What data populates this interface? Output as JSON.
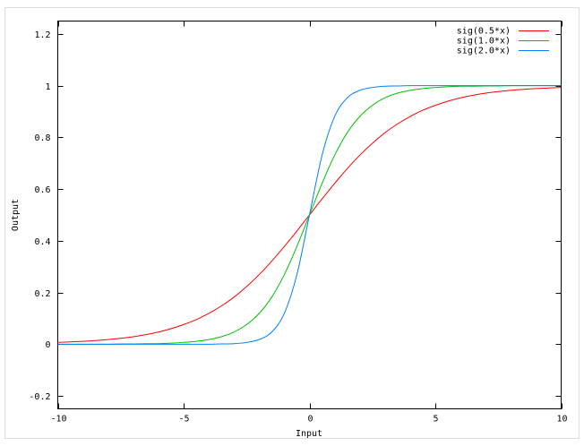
{
  "chart_data": {
    "type": "line",
    "title": "",
    "xlabel": "Input",
    "ylabel": "Output",
    "xlim": [
      -10,
      10
    ],
    "ylim": [
      -0.25,
      1.25
    ],
    "grid": false,
    "legend_position": "top-right",
    "xticks": [
      -10,
      -5,
      0,
      5,
      10
    ],
    "xtick_labels": [
      "-10",
      "-5",
      "0",
      "5",
      "10"
    ],
    "yticks": [
      -0.2,
      0,
      0.2,
      0.4,
      0.6,
      0.8,
      1,
      1.2
    ],
    "ytick_labels": [
      "-0.2",
      "0",
      "0.2",
      "0.4",
      "0.6",
      "0.8",
      "1",
      "1.2"
    ],
    "x": [
      -10,
      -9.5,
      -9,
      -8.5,
      -8,
      -7.5,
      -7,
      -6.5,
      -6,
      -5.5,
      -5,
      -4.5,
      -4,
      -3.5,
      -3,
      -2.5,
      -2,
      -1.5,
      -1,
      -0.5,
      0,
      0.5,
      1,
      1.5,
      2,
      2.5,
      3,
      3.5,
      4,
      4.5,
      5,
      5.5,
      6,
      6.5,
      7,
      7.5,
      8,
      8.5,
      9,
      9.5,
      10
    ],
    "series": [
      {
        "name": "sig(0.5*x)",
        "color": "#ff0000",
        "values": [
          0.007,
          0.009,
          0.011,
          0.014,
          0.018,
          0.023,
          0.029,
          0.037,
          0.047,
          0.06,
          0.076,
          0.095,
          0.119,
          0.148,
          0.182,
          0.223,
          0.269,
          0.321,
          0.378,
          0.438,
          0.5,
          0.562,
          0.622,
          0.679,
          0.731,
          0.777,
          0.818,
          0.852,
          0.881,
          0.905,
          0.924,
          0.94,
          0.953,
          0.963,
          0.971,
          0.977,
          0.982,
          0.986,
          0.989,
          0.991,
          0.993
        ]
      },
      {
        "name": "sig(1.0*x)",
        "color": "#00c000",
        "values": [
          0.0,
          0.0,
          0.0,
          0.0,
          0.0,
          0.001,
          0.001,
          0.002,
          0.002,
          0.004,
          0.007,
          0.011,
          0.018,
          0.029,
          0.047,
          0.076,
          0.119,
          0.182,
          0.269,
          0.378,
          0.5,
          0.622,
          0.731,
          0.818,
          0.881,
          0.924,
          0.953,
          0.971,
          0.982,
          0.989,
          0.993,
          0.996,
          0.998,
          0.998,
          0.999,
          0.999,
          1.0,
          1.0,
          1.0,
          1.0,
          1.0
        ]
      },
      {
        "name": "sig(2.0*x)",
        "color": "#0080ff",
        "values": [
          0.0,
          0.0,
          0.0,
          0.0,
          0.0,
          0.0,
          0.0,
          0.0,
          0.0,
          0.0,
          0.0,
          0.0,
          0.0,
          0.001,
          0.002,
          0.007,
          0.018,
          0.047,
          0.119,
          0.269,
          0.5,
          0.731,
          0.881,
          0.953,
          0.982,
          0.993,
          0.998,
          0.999,
          1.0,
          1.0,
          1.0,
          1.0,
          1.0,
          1.0,
          1.0,
          1.0,
          1.0,
          1.0,
          1.0,
          1.0,
          1.0
        ]
      }
    ]
  }
}
